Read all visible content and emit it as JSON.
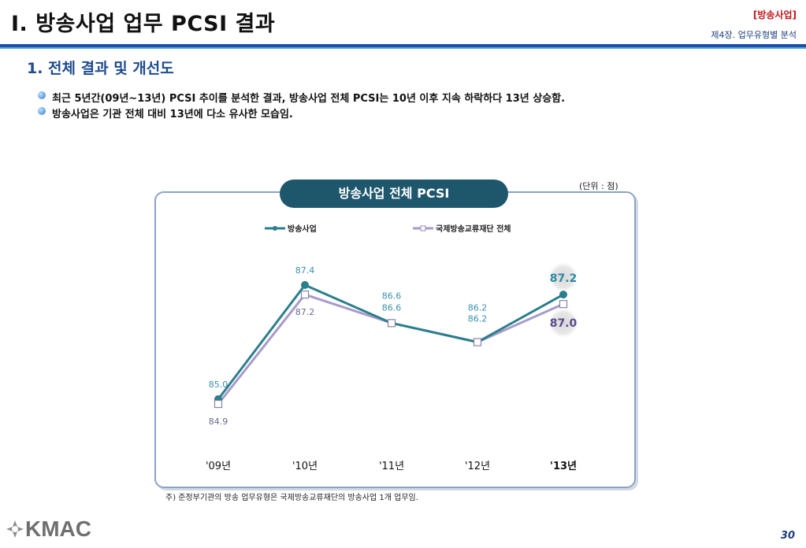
{
  "header": {
    "title": "I. 방송사업 업무 PCSI 결과",
    "tag": "[방송사업]",
    "chapter": "제4장. 업무유형별 분석"
  },
  "section": {
    "title": "1. 전체 결과 및 개선도"
  },
  "bullets": [
    "최근 5년간(09년~13년) PCSI 추이를 분석한 결과, 방송사업 전체 PCSI는 10년 이후 지속 하락하다 13년 상승함.",
    "방송사업은 기관 전체 대비 13년에 다소 유사한 모습임."
  ],
  "unit": "(단위 : 점)",
  "chart_data": {
    "type": "line",
    "title": "방송사업 전체 PCSI",
    "categories": [
      "'09년",
      "'10년",
      "'11년",
      "'12년",
      "'13년"
    ],
    "series": [
      {
        "name": "방송사업",
        "values": [
          85.0,
          87.4,
          86.6,
          86.2,
          87.2
        ],
        "color": "#2a7f8c",
        "marker": "circle"
      },
      {
        "name": "국제방송교류재단 전체",
        "values": [
          84.9,
          87.2,
          86.6,
          86.2,
          87.0
        ],
        "color": "#a99ac9",
        "marker": "square"
      }
    ],
    "data_labels": [
      [
        "85.0",
        "87.4",
        "86.6",
        "86.2",
        "87.2"
      ],
      [
        "84.9",
        "87.2",
        "86.6",
        "86.2",
        "87.0"
      ]
    ],
    "highlight_category": "'13년",
    "legend_position": "top",
    "grid": false,
    "ylim": [
      84.5,
      88.0
    ]
  },
  "footnote": "주) 준정부기관의 방송 업무유형은 국제방송교류재단의 방송사업 1개 업무임.",
  "footer": {
    "logo": "KMAC",
    "page": "30"
  }
}
